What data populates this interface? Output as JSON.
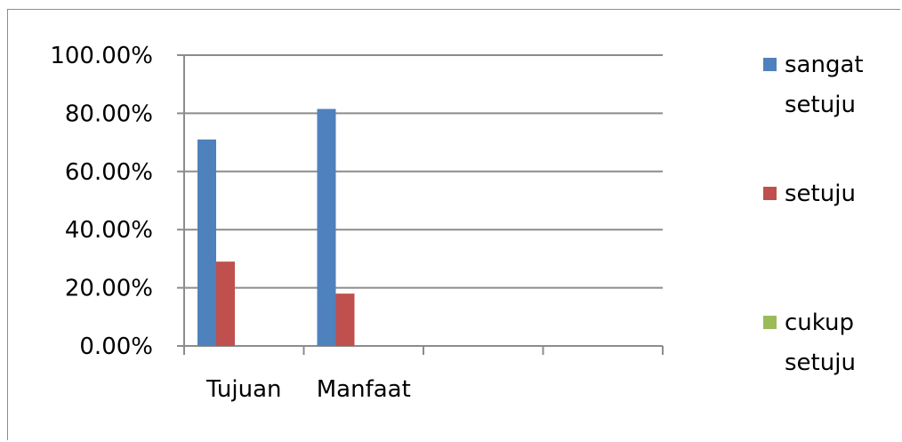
{
  "chart_data": {
    "type": "bar",
    "categories": [
      "Tujuan",
      "Manfaat",
      "",
      ""
    ],
    "series": [
      {
        "name": "sangat setuju",
        "color": "#4f81bd",
        "values": [
          0.71,
          0.815,
          null,
          null
        ]
      },
      {
        "name": "setuju",
        "color": "#c0504d",
        "values": [
          0.29,
          0.18,
          null,
          null
        ]
      },
      {
        "name": "cukup setuju",
        "color": "#9bbb59",
        "values": [
          null,
          null,
          null,
          null
        ]
      }
    ],
    "legend": {
      "position": "right",
      "entries": [
        {
          "lines": [
            "sangat",
            "setuju"
          ]
        },
        {
          "lines": [
            "setuju"
          ]
        },
        {
          "lines": [
            "cukup",
            "setuju"
          ]
        }
      ]
    },
    "ylim": [
      0,
      1
    ],
    "yticks": [
      {
        "value": 0,
        "label": "0.00%"
      },
      {
        "value": 0.2,
        "label": "20.00%"
      },
      {
        "value": 0.4,
        "label": "40.00%"
      },
      {
        "value": 0.6,
        "label": "60.00%"
      },
      {
        "value": 0.8,
        "label": "80.00%"
      },
      {
        "value": 1,
        "label": "100.00%"
      }
    ],
    "grid": true,
    "title": "",
    "xlabel": "",
    "ylabel": ""
  },
  "colors": {
    "gridline": "#8c8c8c",
    "axis": "#8c8c8c"
  }
}
